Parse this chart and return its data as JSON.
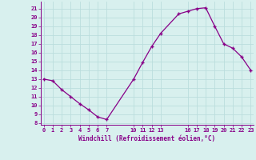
{
  "x": [
    0,
    1,
    2,
    3,
    4,
    5,
    6,
    7,
    10,
    11,
    12,
    13,
    15,
    16,
    17,
    18,
    19,
    20,
    21,
    22,
    23
  ],
  "y": [
    13,
    12.8,
    11.8,
    11.0,
    10.2,
    9.5,
    8.7,
    8.4,
    13.0,
    14.9,
    16.7,
    18.2,
    20.4,
    20.7,
    21.0,
    21.1,
    19.0,
    17.0,
    16.5,
    15.5,
    14.0
  ],
  "xticks": [
    0,
    1,
    2,
    3,
    4,
    5,
    6,
    7,
    10,
    11,
    12,
    13,
    16,
    17,
    18,
    19,
    20,
    21,
    22,
    23
  ],
  "xtick_labels": [
    "0",
    "1",
    "2",
    "3",
    "4",
    "5",
    "6",
    "7",
    "10",
    "11",
    "12",
    "13",
    "16",
    "17",
    "18",
    "19",
    "20",
    "21",
    "22",
    "23"
  ],
  "yticks": [
    8,
    9,
    10,
    11,
    12,
    13,
    14,
    15,
    16,
    17,
    18,
    19,
    20,
    21
  ],
  "ytick_labels": [
    "8",
    "9",
    "10",
    "11",
    "12",
    "13",
    "14",
    "15",
    "16",
    "17",
    "18",
    "19",
    "20",
    "21"
  ],
  "ylim": [
    7.8,
    21.8
  ],
  "xlim": [
    -0.3,
    23.3
  ],
  "xlabel": "Windchill (Refroidissement éolien,°C)",
  "line_color": "#880088",
  "marker": "+",
  "bg_color": "#d8f0ee",
  "grid_color": "#bbdddd",
  "tick_color": "#880088",
  "label_color": "#880088"
}
